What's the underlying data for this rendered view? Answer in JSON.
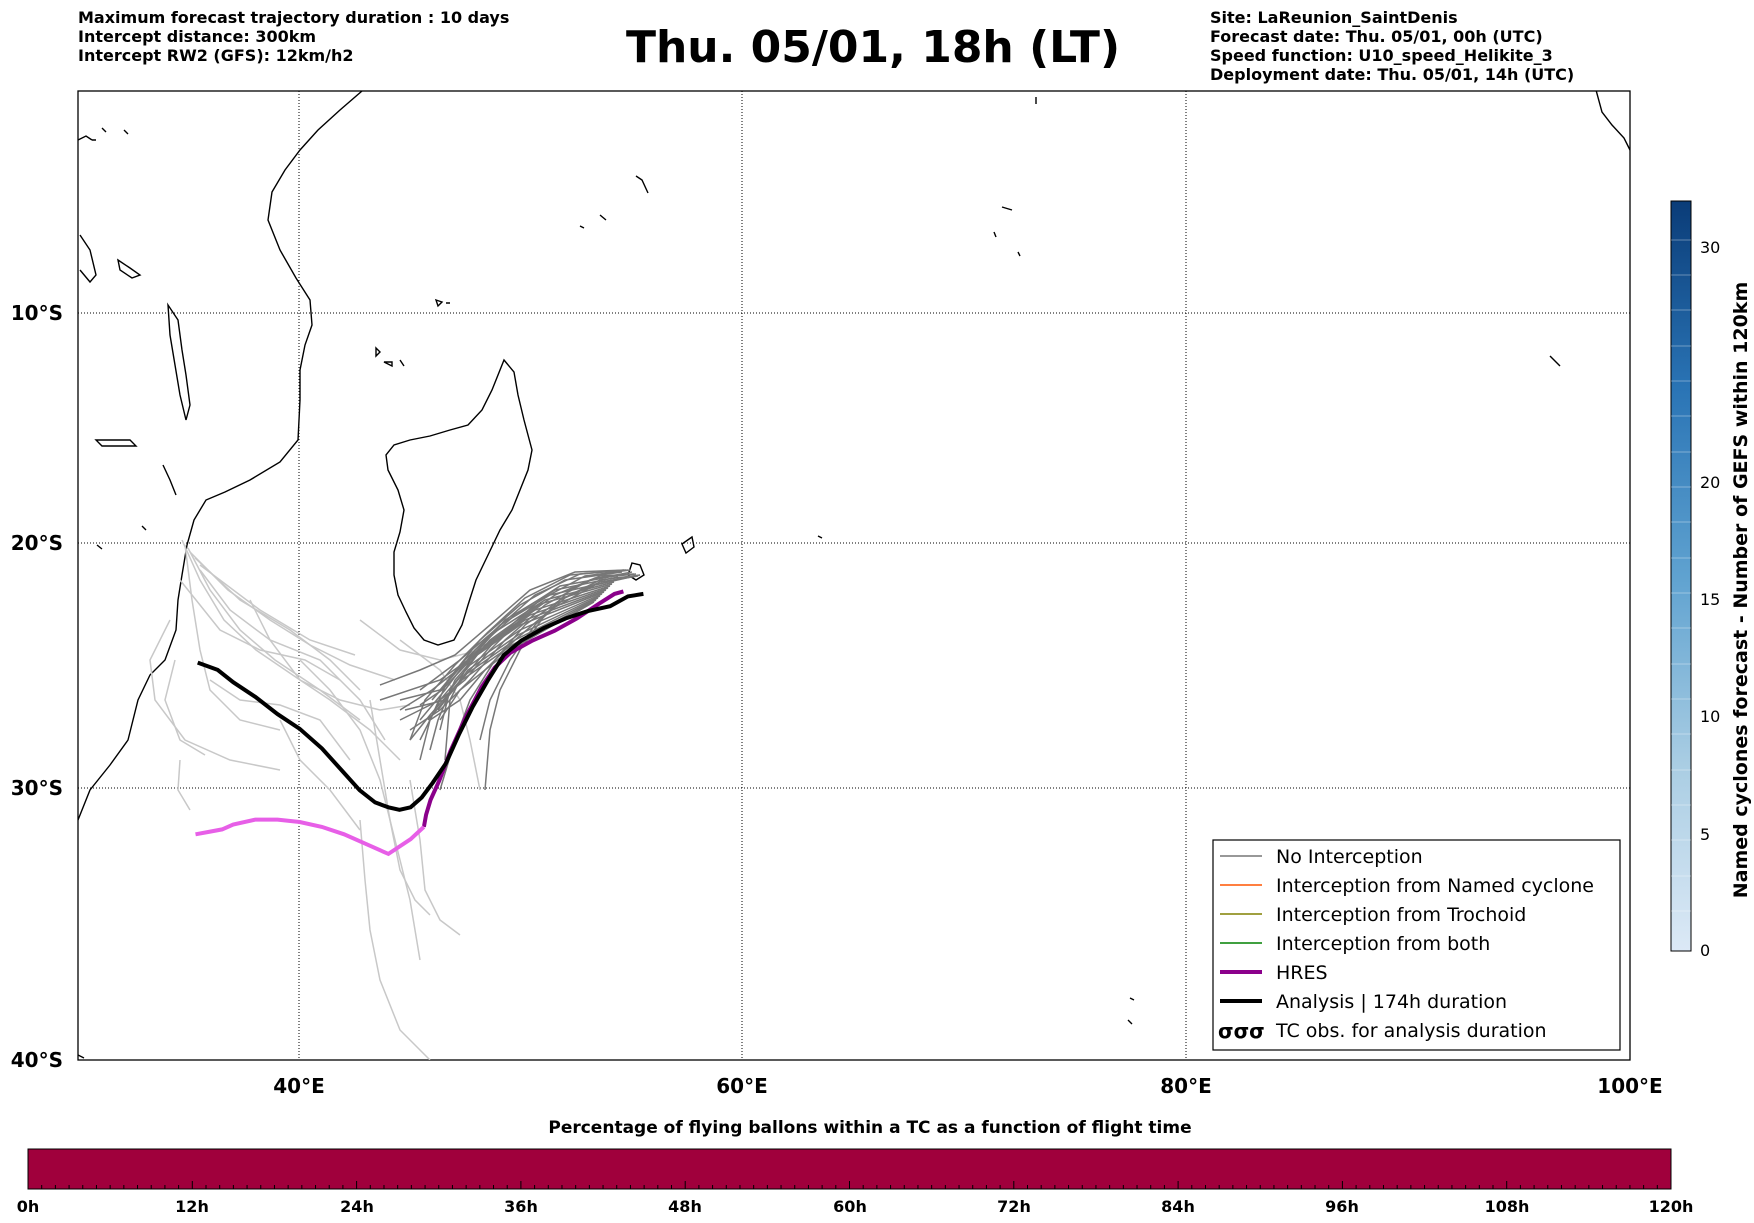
{
  "header": {
    "left": [
      "Maximum forecast trajectory duration : 10 days",
      "Intercept distance: 300km",
      "Intercept RW2 (GFS):  12km/h2"
    ],
    "title": "Thu. 05/01, 18h (LT)",
    "right": [
      "Site: LaReunion_SaintDenis",
      "Forecast date: Thu. 05/01, 00h (UTC)",
      "Speed function: U10_speed_Helikite_3",
      "Deployment date: Thu. 05/01, 14h (UTC)"
    ]
  },
  "map": {
    "lat_ticks": [
      "10°S",
      "20°S",
      "30°S",
      "40°S"
    ],
    "lon_ticks": [
      "40°E",
      "60°E",
      "80°E",
      "100°E"
    ],
    "lon_range": [
      30,
      100
    ],
    "lat_range": [
      -40,
      -0.5
    ],
    "gridlines": true
  },
  "legend": {
    "items": [
      {
        "label": "No Interception",
        "color": "#777777"
      },
      {
        "label": "Interception from Named cyclone",
        "color": "#ff5500"
      },
      {
        "label": "Interception from Trochoid",
        "color": "#808000"
      },
      {
        "label": "Interception from both",
        "color": "#008000"
      },
      {
        "label": "HRES",
        "color": "#8b008b"
      },
      {
        "label": "Analysis | 174h duration",
        "color": "#000000"
      },
      {
        "label": "TC obs. for analysis duration",
        "color": "#000000"
      }
    ]
  },
  "colorbar_right": {
    "label": "Named cyclones forecast - Number of GEFS within 120km",
    "ticks": [
      "0",
      "5",
      "10",
      "15",
      "20",
      "30"
    ]
  },
  "colorbar_bottom": {
    "title": "Percentage of flying ballons within a TC as a function of flight time",
    "ticks": [
      "0h",
      "12h",
      "24h",
      "36h",
      "48h",
      "60h",
      "72h",
      "84h",
      "96h",
      "108h",
      "120h"
    ],
    "fill_color": "#a0003c"
  },
  "chart_data": {
    "type": "line",
    "series": [
      {
        "name": "Analysis | 174h duration",
        "lon": [
          55.5,
          54.8,
          54.0,
          53.0,
          52.0,
          51.0,
          50.0,
          49.2,
          48.5,
          47.8,
          47.2,
          46.6,
          46.0,
          45.5,
          45.0,
          44.5,
          44.0,
          43.4,
          42.7,
          42.0,
          41.0,
          40.0,
          39.0,
          38.0,
          37.0,
          36.3,
          35.4
        ],
        "lat": [
          -21.0,
          -21.1,
          -21.5,
          -21.7,
          -22.0,
          -22.4,
          -22.9,
          -23.5,
          -24.5,
          -25.6,
          -26.7,
          -27.9,
          -28.7,
          -29.3,
          -29.7,
          -29.8,
          -29.7,
          -29.5,
          -29.0,
          -28.3,
          -27.3,
          -26.5,
          -25.9,
          -25.2,
          -24.6,
          -24.1,
          -23.8
        ]
      },
      {
        "name": "HRES",
        "lon": [
          54.6,
          54.2,
          53.5,
          52.5,
          51.5,
          50.5,
          49.5,
          48.8,
          48.2,
          47.5,
          46.8,
          46.3,
          45.9,
          45.7,
          45.6,
          45.0,
          44.0,
          43.0,
          42.0,
          41.0,
          40.0,
          39.0,
          38.0,
          37.0,
          36.5,
          35.9,
          35.3
        ],
        "lat": [
          -20.9,
          -21.0,
          -21.4,
          -22.0,
          -22.5,
          -22.9,
          -23.4,
          -24.0,
          -24.8,
          -26.0,
          -27.4,
          -28.6,
          -29.4,
          -30.0,
          -30.5,
          -31.0,
          -31.6,
          -31.2,
          -30.8,
          -30.5,
          -30.3,
          -30.2,
          -30.2,
          -30.4,
          -30.6,
          -30.7,
          -30.8
        ]
      }
    ]
  }
}
